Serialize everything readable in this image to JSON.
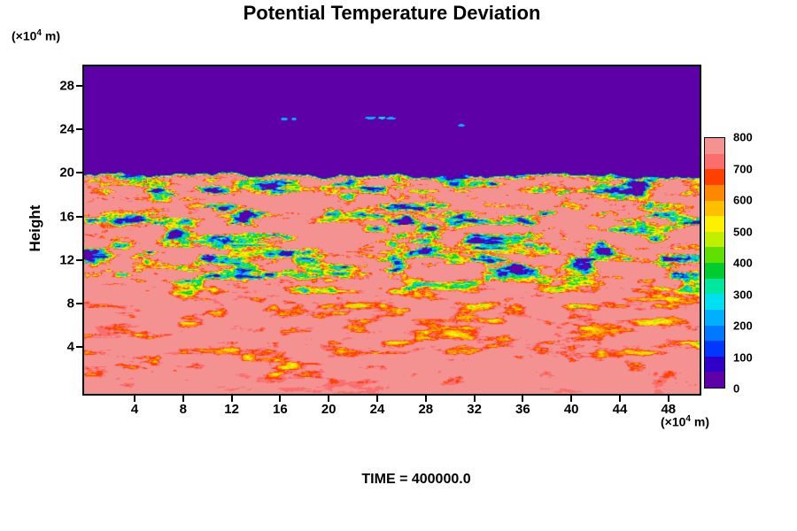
{
  "chart": {
    "title": "Potential Temperature Deviation",
    "ylabel": "Height",
    "y_unit": {
      "prefix": "(×10",
      "exponent": "4",
      "suffix": " m)"
    },
    "x_unit": {
      "prefix": "(×10",
      "exponent": "4",
      "suffix": " m)"
    },
    "time_label": "TIME = 400000.0",
    "x_ticks": [
      4,
      8,
      12,
      16,
      20,
      24,
      28,
      32,
      36,
      40,
      44,
      48
    ],
    "y_ticks": [
      4,
      8,
      12,
      16,
      20,
      24,
      28
    ],
    "colorbar_labels": [
      800,
      700,
      600,
      500,
      400,
      300,
      200,
      100,
      0
    ]
  },
  "chart_data": {
    "type": "heatmap",
    "title": "Potential Temperature Deviation",
    "xlabel": "(×10⁴ m)",
    "ylabel": "Height (×10⁴ m)",
    "x_ticks": [
      4,
      8,
      12,
      16,
      20,
      24,
      28,
      32,
      36,
      40,
      44,
      48
    ],
    "y_ticks": [
      4,
      8,
      12,
      16,
      20,
      24,
      28
    ],
    "xlim": [
      0,
      50.7
    ],
    "ylim": [
      0,
      29.8
    ],
    "value_min": 0,
    "value_max": 800,
    "contour_interval": 50,
    "colorbar_labels": [
      800,
      700,
      600,
      500,
      400,
      300,
      200,
      100,
      0
    ],
    "legend_position": "right",
    "time_annotation": "TIME = 400000.0",
    "colormap": [
      "#5E00A8",
      "#3000C8",
      "#0038FF",
      "#0078FF",
      "#00B0FF",
      "#00E0F0",
      "#00E8A0",
      "#00CC30",
      "#60E000",
      "#C0F000",
      "#FFF000",
      "#FFC000",
      "#FF8800",
      "#FF4000",
      "#FB6E6E",
      "#F49292"
    ],
    "field_regions": [
      {
        "name": "upper-quiescent-layer",
        "height_range": [
          20,
          29.8
        ],
        "value": 0,
        "description": "uniform deep purple region above the inversion, value 0"
      },
      {
        "name": "entrainment-interface",
        "mean_height": 19.85,
        "height_variation": 0.6,
        "description": "sharp wavy boundary between purple free atmosphere and warm mixed layer, rimmed by thin multicolour fringe"
      },
      {
        "name": "turbulent-mixed-layer",
        "height_range": [
          10,
          20
        ],
        "value_range": [
          0,
          800
        ],
        "description": "elongated horizontal eddies: deep blue/purple cores (0-150) ringed by cyan, green, yellow and orange on a salmon (~800) background"
      },
      {
        "name": "lower-layer",
        "height_range": [
          0,
          10
        ],
        "value_range": [
          350,
          800
        ],
        "description": "salmon background (~800) with thin red/orange wisps and occasional curved yellow-green filaments"
      }
    ],
    "detached_specks": [
      [
        16.3,
        25.0,
        0.28,
        0.14,
        230
      ],
      [
        17.1,
        25.0,
        0.2,
        0.11,
        230
      ],
      [
        23.4,
        25.1,
        0.45,
        0.13,
        200
      ],
      [
        24.35,
        25.1,
        0.3,
        0.11,
        260
      ],
      [
        25.1,
        25.05,
        0.4,
        0.12,
        210
      ],
      [
        30.9,
        24.4,
        0.27,
        0.13,
        230
      ]
    ]
  }
}
